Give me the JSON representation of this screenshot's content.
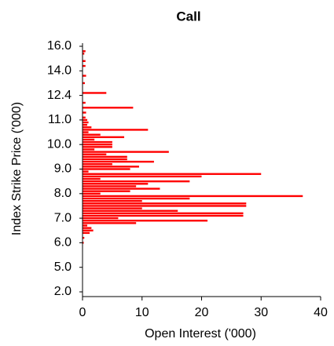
{
  "chart_data": {
    "type": "barh",
    "title": "Call",
    "xlabel": "Open Interest ('000)",
    "ylabel": "Index Strike Price ('000)",
    "categories": [
      "2.0",
      null,
      null,
      null,
      null,
      null,
      null,
      null,
      null,
      null,
      "5.0",
      null,
      null,
      null,
      null,
      null,
      null,
      null,
      null,
      null,
      "6.0",
      null,
      null,
      null,
      null,
      null,
      null,
      null,
      null,
      null,
      "7.0",
      null,
      null,
      null,
      null,
      null,
      null,
      null,
      null,
      null,
      "8.0",
      null,
      null,
      null,
      null,
      null,
      null,
      null,
      null,
      null,
      "9.0",
      null,
      null,
      null,
      null,
      null,
      null,
      null,
      null,
      null,
      "10.0",
      null,
      null,
      null,
      null,
      null,
      null,
      null,
      null,
      null,
      "11.0",
      null,
      null,
      null,
      null,
      null,
      null,
      null,
      null,
      null,
      "12.4",
      null,
      null,
      null,
      null,
      null,
      null,
      null,
      null,
      null,
      "14.0",
      null,
      null,
      null,
      null,
      null,
      null,
      null,
      null,
      null,
      "16.0"
    ],
    "values": [
      0,
      0,
      0,
      0,
      0,
      0,
      0,
      0,
      0,
      0,
      0,
      0,
      0,
      0,
      0,
      0,
      0,
      0,
      0,
      0,
      0.2,
      0,
      0.3,
      0,
      1.2,
      1.8,
      1.5,
      0.8,
      9,
      21,
      6,
      27,
      27,
      16,
      10,
      27.5,
      27.5,
      10,
      18,
      37,
      3,
      8,
      13,
      9,
      11,
      18,
      3,
      20,
      30,
      1,
      8,
      9.5,
      5,
      12,
      7.5,
      7.5,
      4,
      14.5,
      2,
      5,
      5,
      5,
      2,
      7,
      3,
      1,
      11,
      1.5,
      0.8,
      1,
      0.8,
      0.5,
      0,
      0.6,
      0,
      8.5,
      0,
      0.5,
      0,
      0,
      0,
      4,
      0,
      0,
      0,
      0.4,
      0,
      0,
      0.6,
      0,
      0,
      0,
      0.5,
      0,
      0.5,
      0,
      0,
      0.3,
      0.5,
      0,
      0
    ],
    "color": "#ff0000",
    "xlim": [
      0,
      40
    ],
    "xticks": [
      0,
      10,
      20,
      30,
      40
    ],
    "grid": false
  }
}
